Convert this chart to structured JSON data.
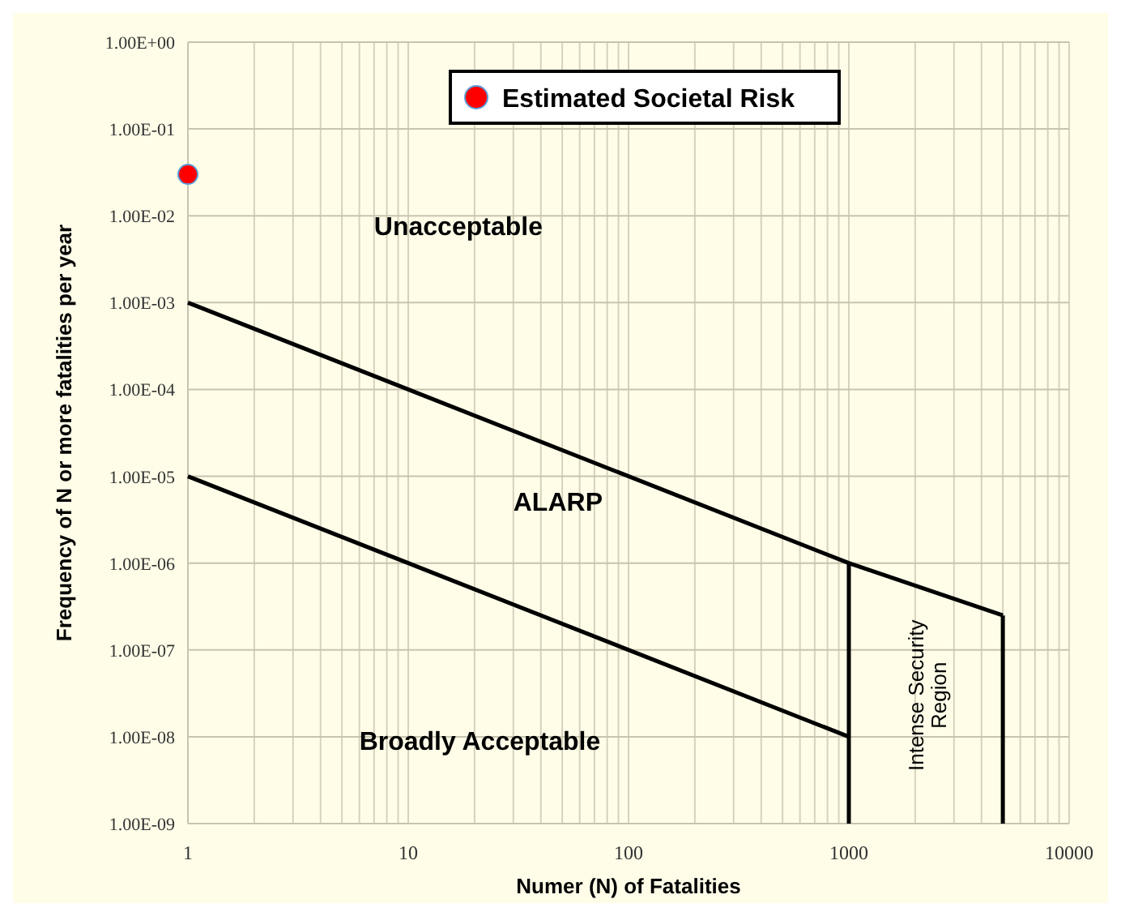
{
  "chart_data": {
    "type": "line",
    "xlabel": "Numer (N) of Fatalities",
    "ylabel": "Frequency of N or more fatalities per year",
    "log": "xy",
    "grid": true,
    "legend": "top",
    "line_style": "solid",
    "xlim": [
      1,
      10000
    ],
    "xticks": [
      1,
      10,
      100,
      1000,
      10000
    ],
    "ylim": [
      1e-09,
      1
    ],
    "yticks": [
      {
        "value": 1e-09,
        "label": "1.00E-09"
      },
      {
        "value": 1e-08,
        "label": "1.00E-08"
      },
      {
        "value": 1e-07,
        "label": "1.00E-07"
      },
      {
        "value": 1e-06,
        "label": "1.00E-06"
      },
      {
        "value": 1e-05,
        "label": "1.00E-05"
      },
      {
        "value": 0.0001,
        "label": "1.00E-04"
      },
      {
        "value": 0.001,
        "label": "1.00E-03"
      },
      {
        "value": 0.01,
        "label": "1.00E-02"
      },
      {
        "value": 0.1,
        "label": "1.00E-01"
      },
      {
        "value": 1,
        "label": "1.00E+00"
      }
    ],
    "series": [
      {
        "color": "#000000",
        "x": [
          1,
          1000,
          5000
        ],
        "values": [
          0.001,
          1e-06,
          2.5e-07
        ]
      },
      {
        "color": "#000000",
        "x": [
          1,
          1000
        ],
        "values": [
          1e-05,
          1e-08
        ]
      },
      {
        "color": "#000000",
        "x": [
          1000,
          1000
        ],
        "values": [
          1e-06,
          1e-09
        ]
      },
      {
        "color": "#000000",
        "x": [
          5000,
          5000
        ],
        "values": [
          2.5e-07,
          1e-09
        ]
      },
      {
        "type": "scatter",
        "name": "Estimated Societal Risk",
        "color": "#ff0000",
        "marker": "circle",
        "x": [
          1
        ],
        "values": [
          0.03
        ]
      }
    ],
    "annotations": [
      "Unacceptable",
      "ALARP",
      "Broadly Acceptable",
      "Intense Security Region"
    ]
  }
}
